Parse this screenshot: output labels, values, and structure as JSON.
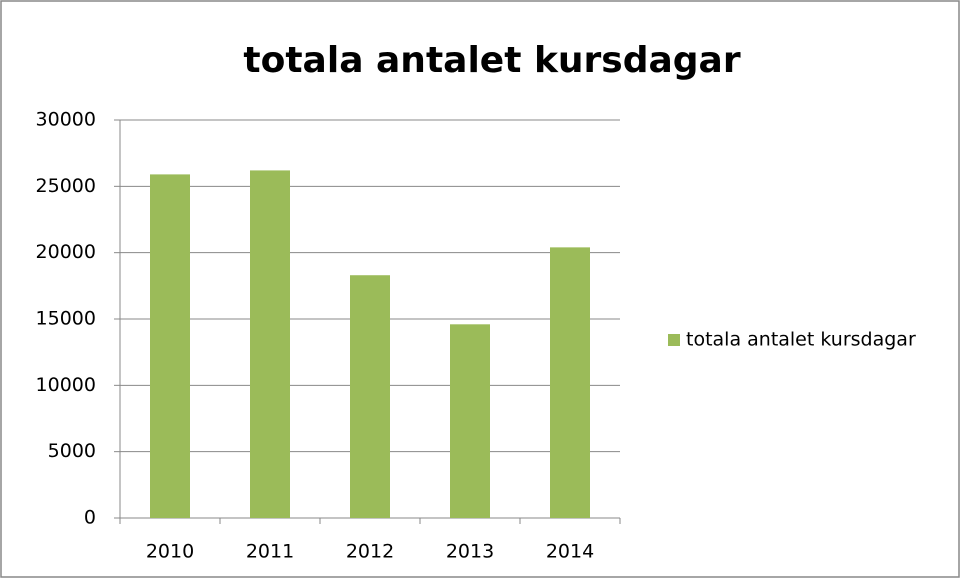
{
  "chart_data": {
    "type": "bar",
    "title": "totala antalet kursdagar",
    "categories": [
      "2010",
      "2011",
      "2012",
      "2013",
      "2014"
    ],
    "series": [
      {
        "name": "totala antalet kursdagar",
        "color": "#9bbb59",
        "values": [
          25900,
          26200,
          18300,
          14600,
          20400
        ]
      }
    ],
    "ylim": [
      0,
      30000
    ],
    "yticks": [
      0,
      5000,
      10000,
      15000,
      20000,
      25000,
      30000
    ],
    "grid": true,
    "legend": "right"
  }
}
